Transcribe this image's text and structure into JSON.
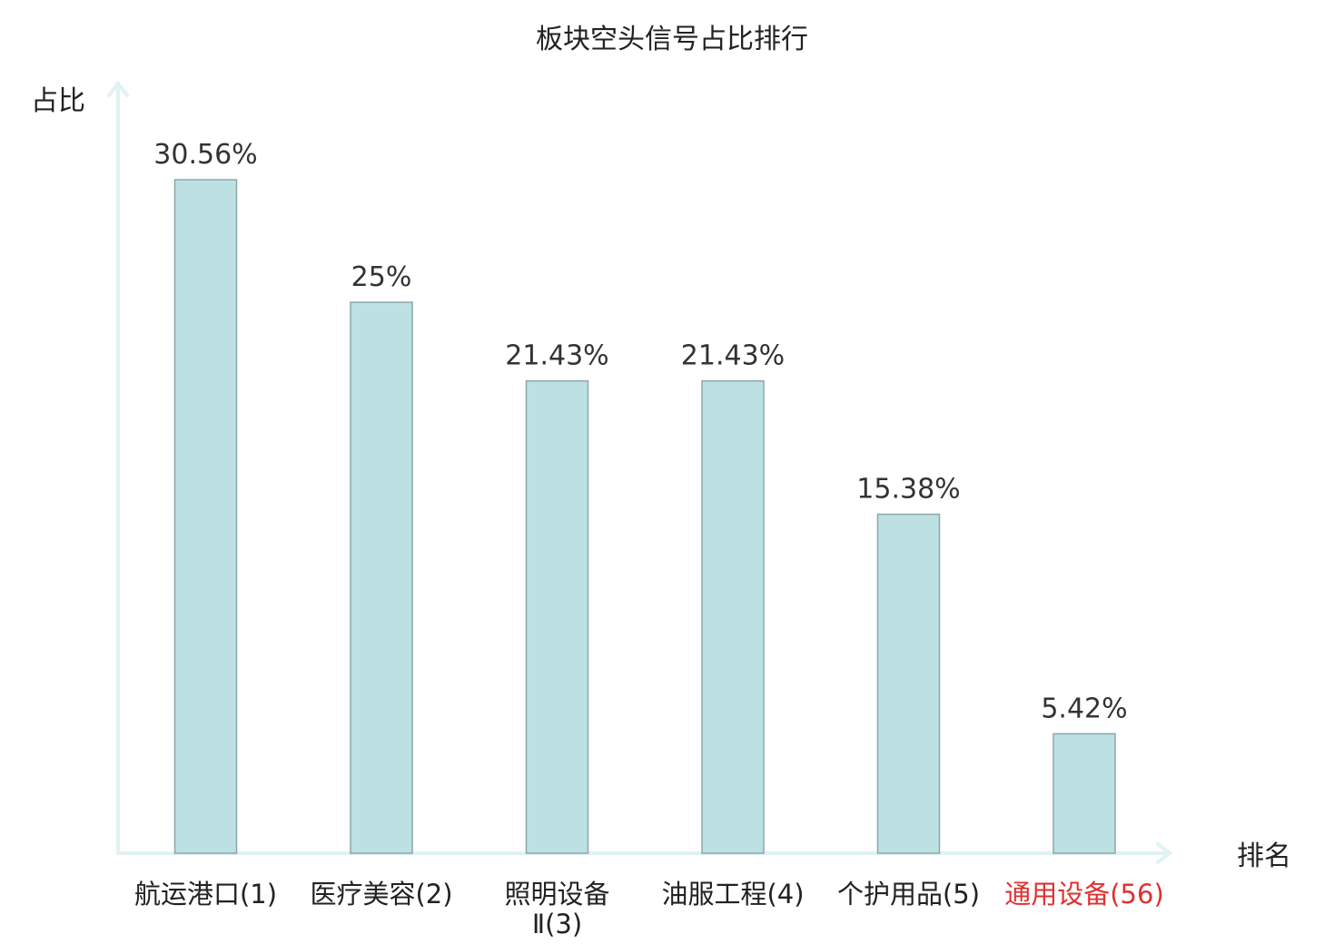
{
  "chart_data": {
    "type": "bar",
    "title": "板块空头信号占比排行",
    "ylabel": "占比",
    "xlabel": "排名",
    "ylim": [
      0,
      36
    ],
    "grid": false,
    "legend": "none",
    "categories": [
      {
        "lines": [
          "航运港口(1)"
        ],
        "highlight": false
      },
      {
        "lines": [
          "医疗美容(2)"
        ],
        "highlight": false
      },
      {
        "lines": [
          "照明设备",
          "Ⅱ(3)"
        ],
        "highlight": false
      },
      {
        "lines": [
          "油服工程(4)"
        ],
        "highlight": false
      },
      {
        "lines": [
          "个护用品(5)"
        ],
        "highlight": false
      },
      {
        "lines": [
          "通用设备(56)"
        ],
        "highlight": true
      }
    ],
    "values": [
      30.56,
      25,
      21.43,
      21.43,
      15.38,
      5.42
    ],
    "value_labels": [
      "30.56%",
      "25%",
      "21.43%",
      "21.43%",
      "15.38%",
      "5.42%"
    ]
  },
  "colors": {
    "bar_fill": "#bde0e2",
    "bar_stroke": "#8aa8aa",
    "axis": "#e0f2f1",
    "text": "#222222",
    "value_text": "#333333",
    "highlight_text": "#e03030"
  }
}
